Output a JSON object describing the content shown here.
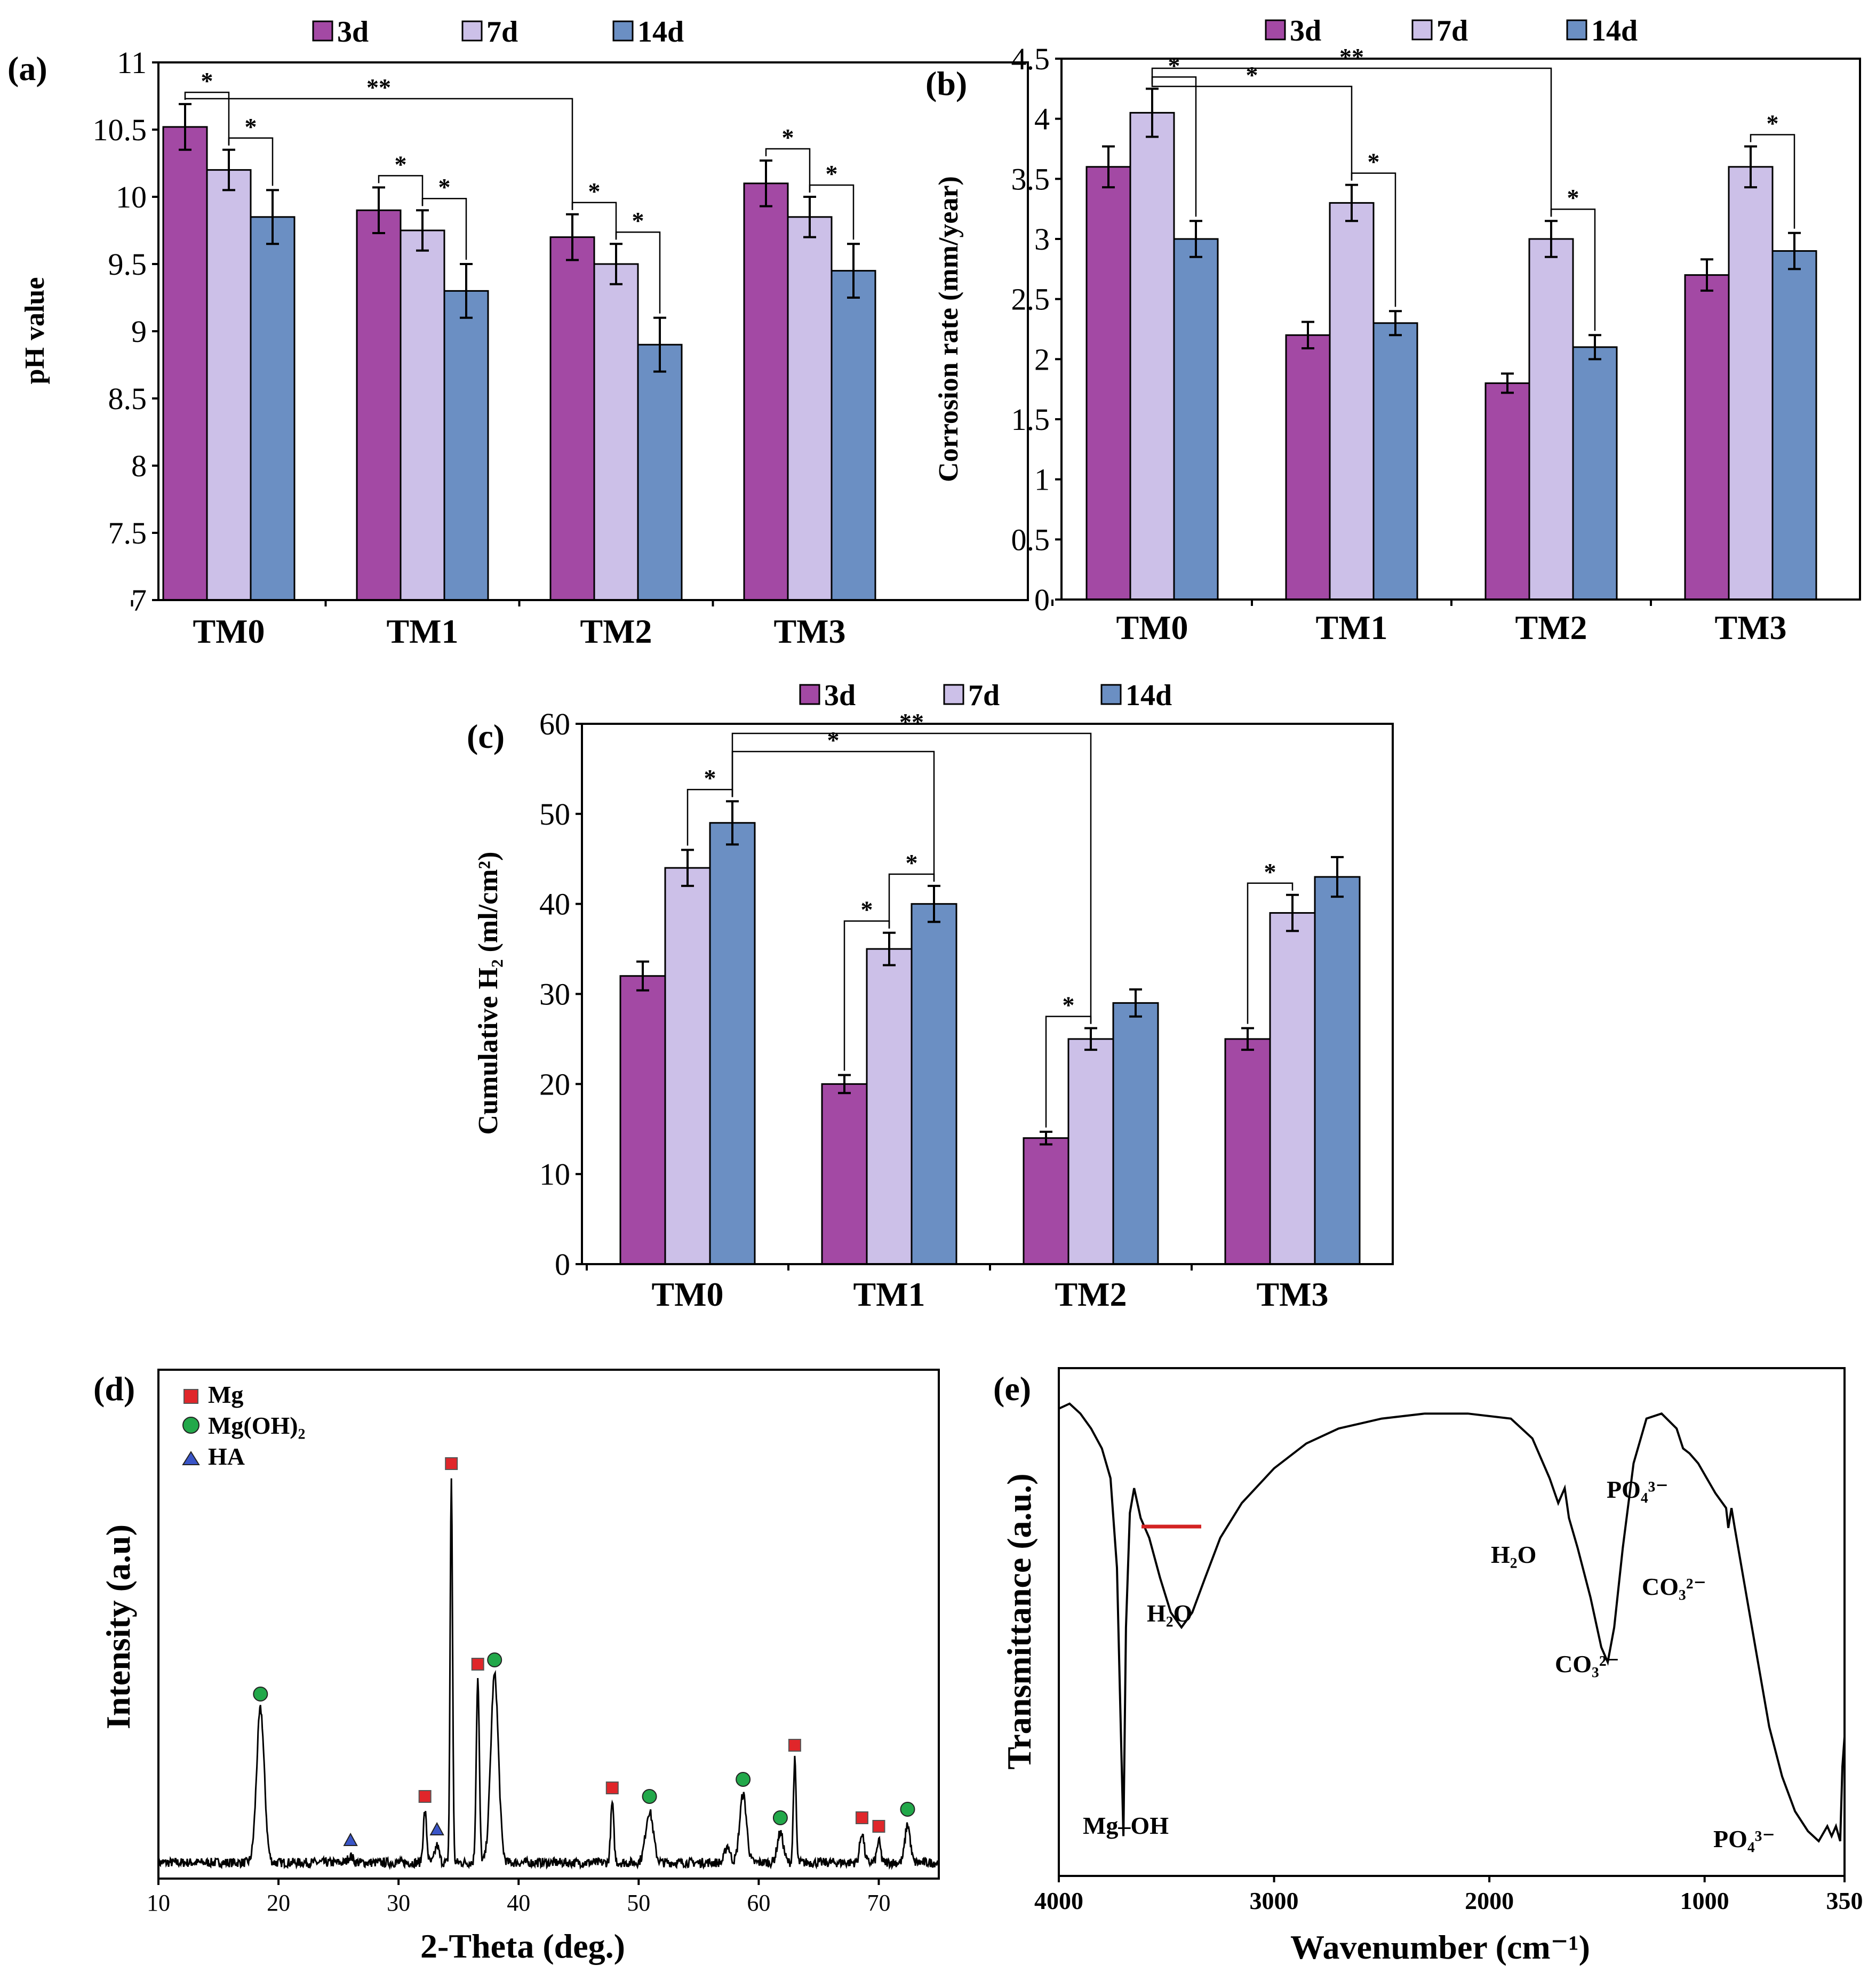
{
  "chart_data": [
    {
      "panel": "(a)",
      "type": "bar",
      "ylabel": "pH value",
      "categories": [
        "TM0",
        "TM1",
        "TM2",
        "TM3"
      ],
      "ylim": [
        7,
        11
      ],
      "yticks": [
        "7",
        "7.5",
        "8",
        "8.5",
        "9",
        "9.5",
        "10",
        "10.5",
        "11"
      ],
      "series": [
        {
          "name": "3d",
          "values": [
            10.52,
            9.9,
            9.7,
            10.1
          ],
          "errors": [
            0.17,
            0.17,
            0.17,
            0.17
          ]
        },
        {
          "name": "7d",
          "values": [
            10.2,
            9.75,
            9.5,
            9.85
          ],
          "errors": [
            0.15,
            0.15,
            0.15,
            0.15
          ]
        },
        {
          "name": "14d",
          "values": [
            9.85,
            9.3,
            8.9,
            9.45
          ],
          "errors": [
            0.2,
            0.2,
            0.2,
            0.2
          ]
        }
      ],
      "significance": [
        {
          "from": [
            0,
            0
          ],
          "to": [
            0,
            1
          ],
          "label": "*"
        },
        {
          "from": [
            0,
            1
          ],
          "to": [
            0,
            2
          ],
          "label": "*"
        },
        {
          "from": [
            1,
            0
          ],
          "to": [
            1,
            1
          ],
          "label": "*"
        },
        {
          "from": [
            1,
            1
          ],
          "to": [
            1,
            2
          ],
          "label": "*"
        },
        {
          "from": [
            2,
            0
          ],
          "to": [
            2,
            1
          ],
          "label": "*"
        },
        {
          "from": [
            2,
            1
          ],
          "to": [
            2,
            2
          ],
          "label": "*"
        },
        {
          "from": [
            3,
            0
          ],
          "to": [
            3,
            1
          ],
          "label": "*"
        },
        {
          "from": [
            3,
            1
          ],
          "to": [
            3,
            2
          ],
          "label": "*"
        },
        {
          "from": [
            0,
            0
          ],
          "to": [
            2,
            0
          ],
          "label": "**"
        }
      ]
    },
    {
      "panel": "(b)",
      "type": "bar",
      "ylabel": "Corrosion rate (mm/year)",
      "categories": [
        "TM0",
        "TM1",
        "TM2",
        "TM3"
      ],
      "ylim": [
        0,
        4.5
      ],
      "yticks": [
        "0",
        "0.5",
        "1",
        "1.5",
        "2",
        "2.5",
        "3",
        "3.5",
        "4",
        "4.5"
      ],
      "series": [
        {
          "name": "3d",
          "values": [
            3.6,
            2.2,
            1.8,
            2.7
          ],
          "errors": [
            0.17,
            0.11,
            0.08,
            0.13
          ]
        },
        {
          "name": "7d",
          "values": [
            4.05,
            3.3,
            3.0,
            3.6
          ],
          "errors": [
            0.2,
            0.15,
            0.15,
            0.17
          ]
        },
        {
          "name": "14d",
          "values": [
            3.0,
            2.3,
            2.1,
            2.9
          ],
          "errors": [
            0.15,
            0.1,
            0.1,
            0.15
          ]
        }
      ],
      "significance": [
        {
          "from": [
            0,
            1
          ],
          "to": [
            0,
            2
          ],
          "label": "*"
        },
        {
          "from": [
            1,
            1
          ],
          "to": [
            1,
            2
          ],
          "label": "*"
        },
        {
          "from": [
            2,
            1
          ],
          "to": [
            2,
            2
          ],
          "label": "*"
        },
        {
          "from": [
            3,
            1
          ],
          "to": [
            3,
            2
          ],
          "label": "*"
        },
        {
          "from": [
            0,
            1
          ],
          "to": [
            1,
            1
          ],
          "label": "*"
        },
        {
          "from": [
            0,
            1
          ],
          "to": [
            2,
            1
          ],
          "label": "**"
        }
      ]
    },
    {
      "panel": "(c)",
      "type": "bar",
      "ylabel": "Cumulative H₂ (ml/cm²)",
      "categories": [
        "TM0",
        "TM1",
        "TM2",
        "TM3"
      ],
      "ylim": [
        0,
        60
      ],
      "yticks": [
        "0",
        "10",
        "20",
        "30",
        "40",
        "50",
        "60"
      ],
      "series": [
        {
          "name": "3d",
          "values": [
            32,
            20,
            14,
            25
          ],
          "errors": [
            1.6,
            1.0,
            0.7,
            1.2
          ]
        },
        {
          "name": "7d",
          "values": [
            44,
            35,
            25,
            39
          ],
          "errors": [
            2.0,
            1.8,
            1.2,
            2.0
          ]
        },
        {
          "name": "14d",
          "values": [
            49,
            40,
            29,
            43
          ],
          "errors": [
            2.4,
            2.0,
            1.5,
            2.2
          ]
        }
      ],
      "significance": [
        {
          "from": [
            0,
            1
          ],
          "to": [
            0,
            2
          ],
          "label": "*"
        },
        {
          "from": [
            1,
            0
          ],
          "to": [
            1,
            1
          ],
          "label": "*"
        },
        {
          "from": [
            1,
            1
          ],
          "to": [
            1,
            2
          ],
          "label": "*"
        },
        {
          "from": [
            2,
            0
          ],
          "to": [
            2,
            1
          ],
          "label": "*"
        },
        {
          "from": [
            3,
            0
          ],
          "to": [
            3,
            1
          ],
          "label": "*"
        },
        {
          "from": [
            0,
            2
          ],
          "to": [
            1,
            2
          ],
          "label": "*"
        },
        {
          "from": [
            0,
            2
          ],
          "to": [
            2,
            1
          ],
          "label": "**"
        }
      ]
    },
    {
      "panel": "(d)",
      "type": "line",
      "xlabel": "2-Theta (deg.)",
      "ylabel": "Intensity (a.u)",
      "xlim": [
        10,
        75
      ],
      "xticks": [
        "10",
        "20",
        "30",
        "40",
        "50",
        "60",
        "70"
      ],
      "legend": [
        {
          "name": "Mg",
          "marker": "square",
          "color": "#e0262a"
        },
        {
          "name": "Mg(OH)₂",
          "marker": "circle",
          "color": "#22a84a"
        },
        {
          "name": "HA",
          "marker": "triangle",
          "color": "#3a55c8"
        }
      ],
      "peaks": [
        {
          "x": 18.5,
          "h": 0.36,
          "w": 0.45,
          "marker": "Mg(OH)₂"
        },
        {
          "x": 26.0,
          "h": 0.015,
          "w": 0.3,
          "marker": "HA"
        },
        {
          "x": 32.2,
          "h": 0.12,
          "w": 0.2,
          "marker": "Mg"
        },
        {
          "x": 33.2,
          "h": 0.04,
          "w": 0.25,
          "marker": "HA"
        },
        {
          "x": 34.4,
          "h": 0.9,
          "w": 0.14,
          "marker": "Mg"
        },
        {
          "x": 36.6,
          "h": 0.43,
          "w": 0.18,
          "marker": "Mg"
        },
        {
          "x": 38.0,
          "h": 0.44,
          "w": 0.45,
          "marker": "Mg(OH)₂"
        },
        {
          "x": 47.8,
          "h": 0.14,
          "w": 0.18,
          "marker": "Mg"
        },
        {
          "x": 50.9,
          "h": 0.12,
          "w": 0.45,
          "marker": "Mg(OH)₂"
        },
        {
          "x": 57.4,
          "h": 0.04,
          "w": 0.3,
          "marker": ""
        },
        {
          "x": 58.7,
          "h": 0.16,
          "w": 0.4,
          "marker": "Mg(OH)₂"
        },
        {
          "x": 61.8,
          "h": 0.07,
          "w": 0.35,
          "marker": "Mg(OH)₂"
        },
        {
          "x": 63.0,
          "h": 0.24,
          "w": 0.16,
          "marker": "Mg"
        },
        {
          "x": 68.6,
          "h": 0.07,
          "w": 0.25,
          "marker": "Mg"
        },
        {
          "x": 70.0,
          "h": 0.05,
          "w": 0.22,
          "marker": "Mg"
        },
        {
          "x": 72.4,
          "h": 0.09,
          "w": 0.3,
          "marker": "Mg(OH)₂"
        }
      ]
    },
    {
      "panel": "(e)",
      "type": "line",
      "xlabel": "Wavenumber (cm⁻¹)",
      "ylabel": "Transmittance (a.u.)",
      "xlim": [
        4000,
        350
      ],
      "xticks": [
        "4000",
        "3000",
        "2000",
        "1000",
        "350"
      ],
      "points": [
        [
          4000,
          0.94
        ],
        [
          3950,
          0.95
        ],
        [
          3900,
          0.93
        ],
        [
          3850,
          0.9
        ],
        [
          3800,
          0.86
        ],
        [
          3760,
          0.8
        ],
        [
          3730,
          0.62
        ],
        [
          3715,
          0.35
        ],
        [
          3700,
          0.08
        ],
        [
          3688,
          0.5
        ],
        [
          3670,
          0.73
        ],
        [
          3650,
          0.78
        ],
        [
          3620,
          0.72
        ],
        [
          3580,
          0.68
        ],
        [
          3530,
          0.6
        ],
        [
          3480,
          0.53
        ],
        [
          3430,
          0.5
        ],
        [
          3380,
          0.53
        ],
        [
          3320,
          0.6
        ],
        [
          3250,
          0.68
        ],
        [
          3150,
          0.75
        ],
        [
          3000,
          0.82
        ],
        [
          2850,
          0.87
        ],
        [
          2700,
          0.9
        ],
        [
          2500,
          0.92
        ],
        [
          2300,
          0.93
        ],
        [
          2100,
          0.93
        ],
        [
          1900,
          0.92
        ],
        [
          1800,
          0.88
        ],
        [
          1720,
          0.8
        ],
        [
          1680,
          0.75
        ],
        [
          1650,
          0.78
        ],
        [
          1630,
          0.72
        ],
        [
          1590,
          0.66
        ],
        [
          1530,
          0.56
        ],
        [
          1480,
          0.46
        ],
        [
          1450,
          0.43
        ],
        [
          1420,
          0.5
        ],
        [
          1380,
          0.66
        ],
        [
          1330,
          0.83
        ],
        [
          1270,
          0.92
        ],
        [
          1200,
          0.93
        ],
        [
          1130,
          0.9
        ],
        [
          1100,
          0.86
        ],
        [
          1070,
          0.85
        ],
        [
          1030,
          0.83
        ],
        [
          990,
          0.8
        ],
        [
          950,
          0.77
        ],
        [
          900,
          0.74
        ],
        [
          890,
          0.7
        ],
        [
          875,
          0.74
        ],
        [
          860,
          0.7
        ],
        [
          820,
          0.6
        ],
        [
          760,
          0.45
        ],
        [
          700,
          0.3
        ],
        [
          640,
          0.2
        ],
        [
          580,
          0.13
        ],
        [
          520,
          0.09
        ],
        [
          470,
          0.07
        ],
        [
          430,
          0.1
        ],
        [
          410,
          0.08
        ],
        [
          390,
          0.1
        ],
        [
          370,
          0.07
        ],
        [
          360,
          0.22
        ],
        [
          350,
          0.28
        ]
      ],
      "annotations": [
        "H₂O",
        "Mg–OH",
        "H₂O",
        "CO₃²⁻",
        "PO₄³⁻",
        "CO₃²⁻",
        "PO₄³⁻"
      ]
    }
  ],
  "legend_labels": [
    "3d",
    "7d",
    "14d"
  ],
  "colors": {
    "3d": "#a349a4",
    "7d": "#ccc0e8",
    "14d": "#6b8fc3",
    "mg": "#e0262a",
    "mgoh": "#22a84a",
    "ha": "#3a55c8",
    "marker_h2o": "#d32222"
  }
}
